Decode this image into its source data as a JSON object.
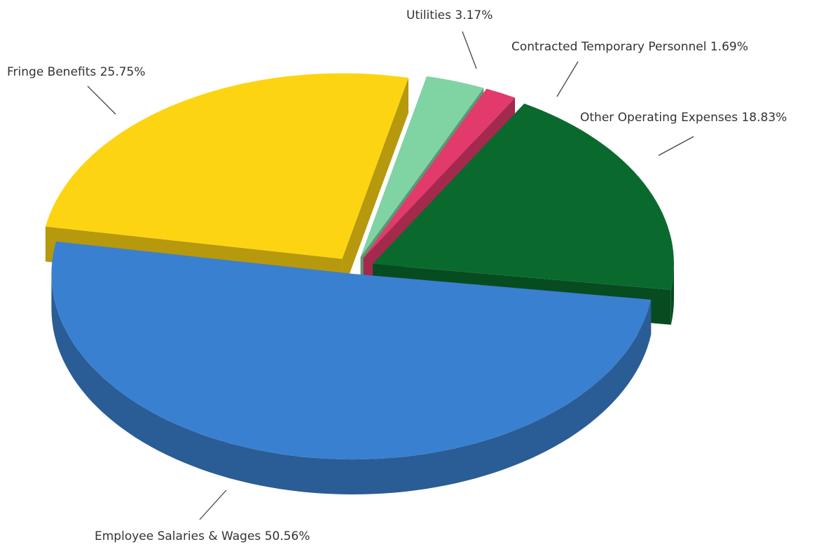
{
  "chart_data": {
    "type": "pie",
    "categories": [
      "Employee Salaries & Wages",
      "Fringe Benefits",
      "Utilities",
      "Contracted Temporary Personnel",
      "Other Operating Expenses"
    ],
    "values": [
      50.56,
      25.75,
      3.17,
      1.69,
      18.83
    ],
    "value_labels": [
      "50.56%",
      "25.75%",
      "3.17%",
      "1.69%",
      "18.83%"
    ],
    "colors": [
      "#3a80d0",
      "#fdd412",
      "#80d3a3",
      "#e23b6b",
      "#0a6a2e"
    ]
  }
}
